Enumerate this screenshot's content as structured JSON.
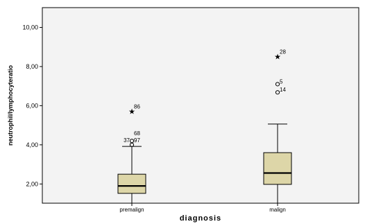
{
  "chart_data": {
    "type": "boxplot",
    "xlabel": "diagnosis",
    "ylabel": "neutrophil/lymphocyteratio",
    "ylim": [
      0.9,
      11.0
    ],
    "yticks": [
      2.0,
      4.0,
      6.0,
      8.0,
      10.0
    ],
    "ytick_labels": [
      "2,00",
      "4,00",
      "6,00",
      "8,00",
      "10,00"
    ],
    "box_color": "#ddd6a8",
    "categories": [
      "premalign",
      "malign"
    ],
    "boxes": [
      {
        "category": "premalign",
        "whisker_low": 0.9,
        "q1": 1.52,
        "median": 1.9,
        "q3": 2.5,
        "whisker_high": 3.92,
        "outliers": [
          {
            "label": "37",
            "value": 4.0,
            "marker": "circle"
          },
          {
            "label": "97",
            "value": 4.0,
            "marker": "circle"
          },
          {
            "label": "68",
            "value": 4.2,
            "marker": "circle"
          },
          {
            "label": "86",
            "value": 5.72,
            "marker": "star"
          }
        ]
      },
      {
        "category": "malign",
        "whisker_low": 0.9,
        "q1": 1.98,
        "median": 2.56,
        "q3": 3.6,
        "whisker_high": 5.06,
        "outliers": [
          {
            "label": "14",
            "value": 6.68,
            "marker": "circle"
          },
          {
            "label": "5",
            "value": 7.1,
            "marker": "circle"
          },
          {
            "label": "28",
            "value": 8.52,
            "marker": "star"
          }
        ]
      }
    ]
  }
}
